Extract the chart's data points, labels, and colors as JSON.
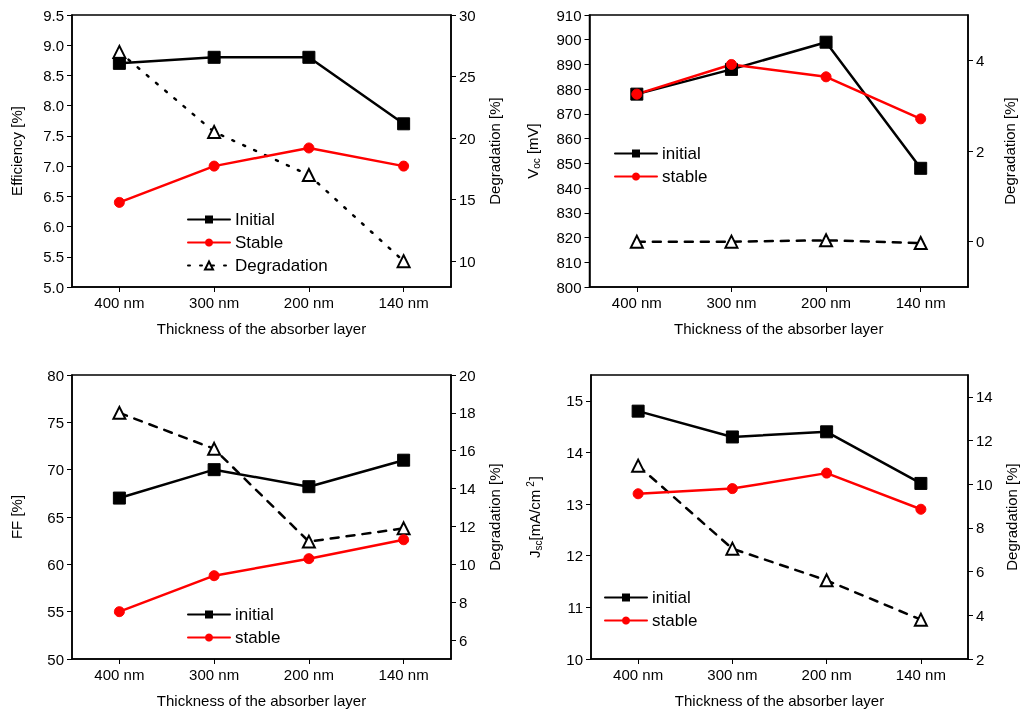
{
  "chart_data": [
    {
      "type": "line",
      "xlabel": "Thickness of the absorber layer",
      "ylabel": "Efficiency [%]",
      "y2label": "Degradation [%]",
      "categories": [
        "400 nm",
        "300 nm",
        "200 nm",
        "140 nm"
      ],
      "ylim": [
        5,
        9.5
      ],
      "yticks": [
        {
          "value": 5,
          "label": "5.0"
        },
        5.5,
        {
          "value": 6,
          "label": "6.0"
        },
        6.5,
        {
          "value": 7,
          "label": "7.0"
        },
        7.5,
        {
          "value": 8,
          "label": "8.0"
        },
        8.5,
        {
          "value": 9,
          "label": "9.0"
        },
        9.5
      ],
      "y2lim": [
        7.9,
        30
      ],
      "y2ticks": [
        10,
        15,
        20,
        25,
        30
      ],
      "legend": "bottom",
      "grid": false,
      "series": [
        {
          "name": "Initial",
          "color": "#000000",
          "marker": "square",
          "line_style": "solid",
          "values": [
            8.7,
            8.8,
            8.8,
            7.7
          ]
        },
        {
          "name": "Stable",
          "color": "#ff0000",
          "marker": "circle",
          "line_style": "solid",
          "values": [
            6.4,
            7.0,
            7.3,
            7.0
          ]
        },
        {
          "name": "Degradation",
          "color": "#000000",
          "marker": "triangle",
          "line_style": "dotted",
          "axis": "y2",
          "values": [
            27.0,
            20.5,
            17.0,
            10.0
          ]
        }
      ]
    },
    {
      "type": "line",
      "xlabel": "Thickness of the absorber layer",
      "ylabel": "V$_{oc}$ [mV]",
      "y2label": "Degradation [%]",
      "categories": [
        "400 nm",
        "300 nm",
        "200 nm",
        "140 nm"
      ],
      "ylim": [
        800,
        910
      ],
      "yticks": [
        800,
        810,
        820,
        830,
        840,
        850,
        860,
        870,
        880,
        890,
        900,
        910
      ],
      "y2lim": [
        -1,
        5
      ],
      "y2ticks": [
        0,
        2,
        4
      ],
      "legend": "left",
      "grid": false,
      "series": [
        {
          "name": "initial",
          "color": "#000000",
          "marker": "square",
          "line_style": "solid",
          "values": [
            878,
            888,
            899,
            848
          ]
        },
        {
          "name": "stable",
          "color": "#ff0000",
          "marker": "circle",
          "line_style": "solid",
          "values": [
            878,
            890,
            885,
            868
          ]
        },
        {
          "color": "#000000",
          "marker": "triangle",
          "line_style": "dashed",
          "axis": "y2",
          "values": [
            0,
            0,
            0.03,
            -0.03
          ]
        }
      ]
    },
    {
      "type": "line",
      "xlabel": "Thickness of the absorber layer",
      "ylabel": "FF [%]",
      "y2label": "Degradation [%]",
      "categories": [
        "400 nm",
        "300 nm",
        "200 nm",
        "140 nm"
      ],
      "ylim": [
        50,
        80
      ],
      "yticks": [
        50,
        55,
        60,
        65,
        70,
        75,
        80
      ],
      "y2lim": [
        5,
        20
      ],
      "y2ticks": [
        6,
        8,
        10,
        12,
        14,
        16,
        18,
        20
      ],
      "legend": "bottom",
      "grid": false,
      "series": [
        {
          "name": "initial",
          "color": "#000000",
          "marker": "square",
          "line_style": "solid",
          "values": [
            67,
            70,
            68.2,
            71
          ]
        },
        {
          "name": "stable",
          "color": "#ff0000",
          "marker": "circle",
          "line_style": "solid",
          "values": [
            55,
            58.8,
            60.6,
            62.6
          ]
        },
        {
          "color": "#000000",
          "marker": "triangle",
          "line_style": "dashed",
          "axis": "y2",
          "values": [
            18.0,
            16.1,
            11.2,
            11.9
          ]
        }
      ]
    },
    {
      "type": "line",
      "xlabel": "Thickness of the absorber layer",
      "ylabel": "J$_{sc}$[mA/cm$^{2}$]",
      "y2label": "Degradation [%]",
      "categories": [
        "400 nm",
        "300 nm",
        "200 nm",
        "140 nm"
      ],
      "ylim": [
        10,
        15.5
      ],
      "yticks": [
        10,
        11,
        12,
        13,
        14,
        15
      ],
      "y2lim": [
        2,
        15
      ],
      "y2ticks": [
        2,
        4,
        6,
        8,
        10,
        12,
        14
      ],
      "legend": "bottom left",
      "grid": false,
      "series": [
        {
          "name": "initial",
          "color": "#000000",
          "marker": "square",
          "line_style": "solid",
          "values": [
            14.8,
            14.3,
            14.4,
            13.4
          ]
        },
        {
          "name": "stable",
          "color": "#ff0000",
          "marker": "circle",
          "line_style": "solid",
          "values": [
            13.2,
            13.3,
            13.6,
            12.9
          ]
        },
        {
          "color": "#000000",
          "marker": "triangle",
          "line_style": "dashed",
          "axis": "y2",
          "values": [
            10.85,
            7.05,
            5.6,
            3.8
          ]
        }
      ]
    }
  ]
}
